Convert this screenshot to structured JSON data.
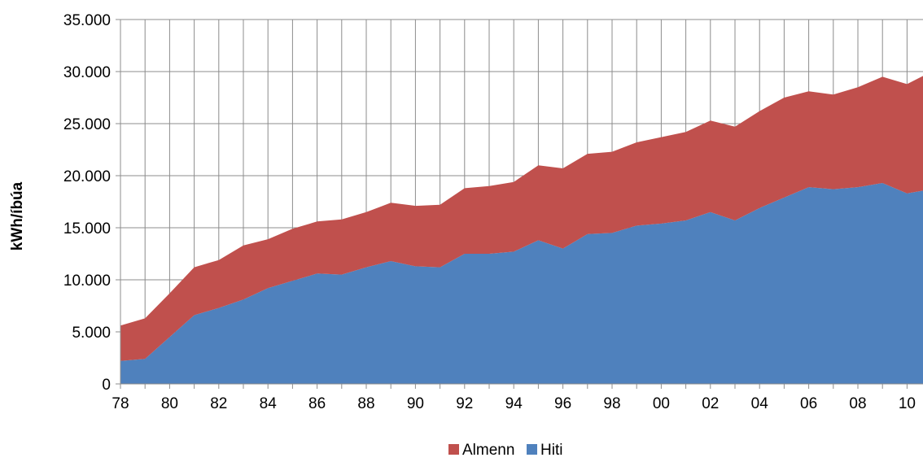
{
  "chart_data": {
    "type": "area",
    "stacked": true,
    "title": "",
    "xlabel": "",
    "ylabel": "kWh/íbúa",
    "ylim": [
      0,
      35000
    ],
    "yticks": [
      0,
      5000,
      10000,
      15000,
      20000,
      25000,
      30000,
      35000
    ],
    "ytick_labels": [
      "0",
      "5.000",
      "10.000",
      "15.000",
      "20.000",
      "25.000",
      "30.000",
      "35.000"
    ],
    "xtick_labels": [
      "78",
      "80",
      "82",
      "84",
      "86",
      "88",
      "90",
      "92",
      "94",
      "96",
      "98",
      "00",
      "02",
      "04",
      "06",
      "08",
      "10"
    ],
    "grid": true,
    "legend_position": "bottom",
    "categories": [
      "78",
      "79",
      "80",
      "81",
      "82",
      "83",
      "84",
      "85",
      "86",
      "87",
      "88",
      "89",
      "90",
      "91",
      "92",
      "93",
      "94",
      "95",
      "96",
      "97",
      "98",
      "99",
      "00",
      "01",
      "02",
      "03",
      "04",
      "05",
      "06",
      "07",
      "08",
      "09",
      "10",
      "11"
    ],
    "series": [
      {
        "name": "Hiti",
        "color": "#4F81BD",
        "values": [
          2200,
          2400,
          4500,
          6600,
          7300,
          8100,
          9200,
          9900,
          10600,
          10500,
          11200,
          11800,
          11300,
          11200,
          12500,
          12500,
          12700,
          13800,
          13000,
          14400,
          14500,
          15200,
          15400,
          15700,
          16500,
          15700,
          16900,
          17900,
          18900,
          18700,
          18900,
          19300,
          18300,
          18700
        ]
      },
      {
        "name": "Almenn",
        "color": "#C0504D",
        "values": [
          3400,
          3900,
          4200,
          4600,
          4600,
          5200,
          4700,
          5000,
          5000,
          5300,
          5300,
          5600,
          5800,
          6000,
          6300,
          6500,
          6700,
          7200,
          7700,
          7700,
          7800,
          8000,
          8300,
          8500,
          8800,
          9000,
          9300,
          9600,
          9200,
          9100,
          9600,
          10200,
          10500,
          11300
        ]
      }
    ],
    "legend": [
      {
        "name": "Almenn",
        "color": "#C0504D"
      },
      {
        "name": "Hiti",
        "color": "#4F81BD"
      }
    ]
  }
}
